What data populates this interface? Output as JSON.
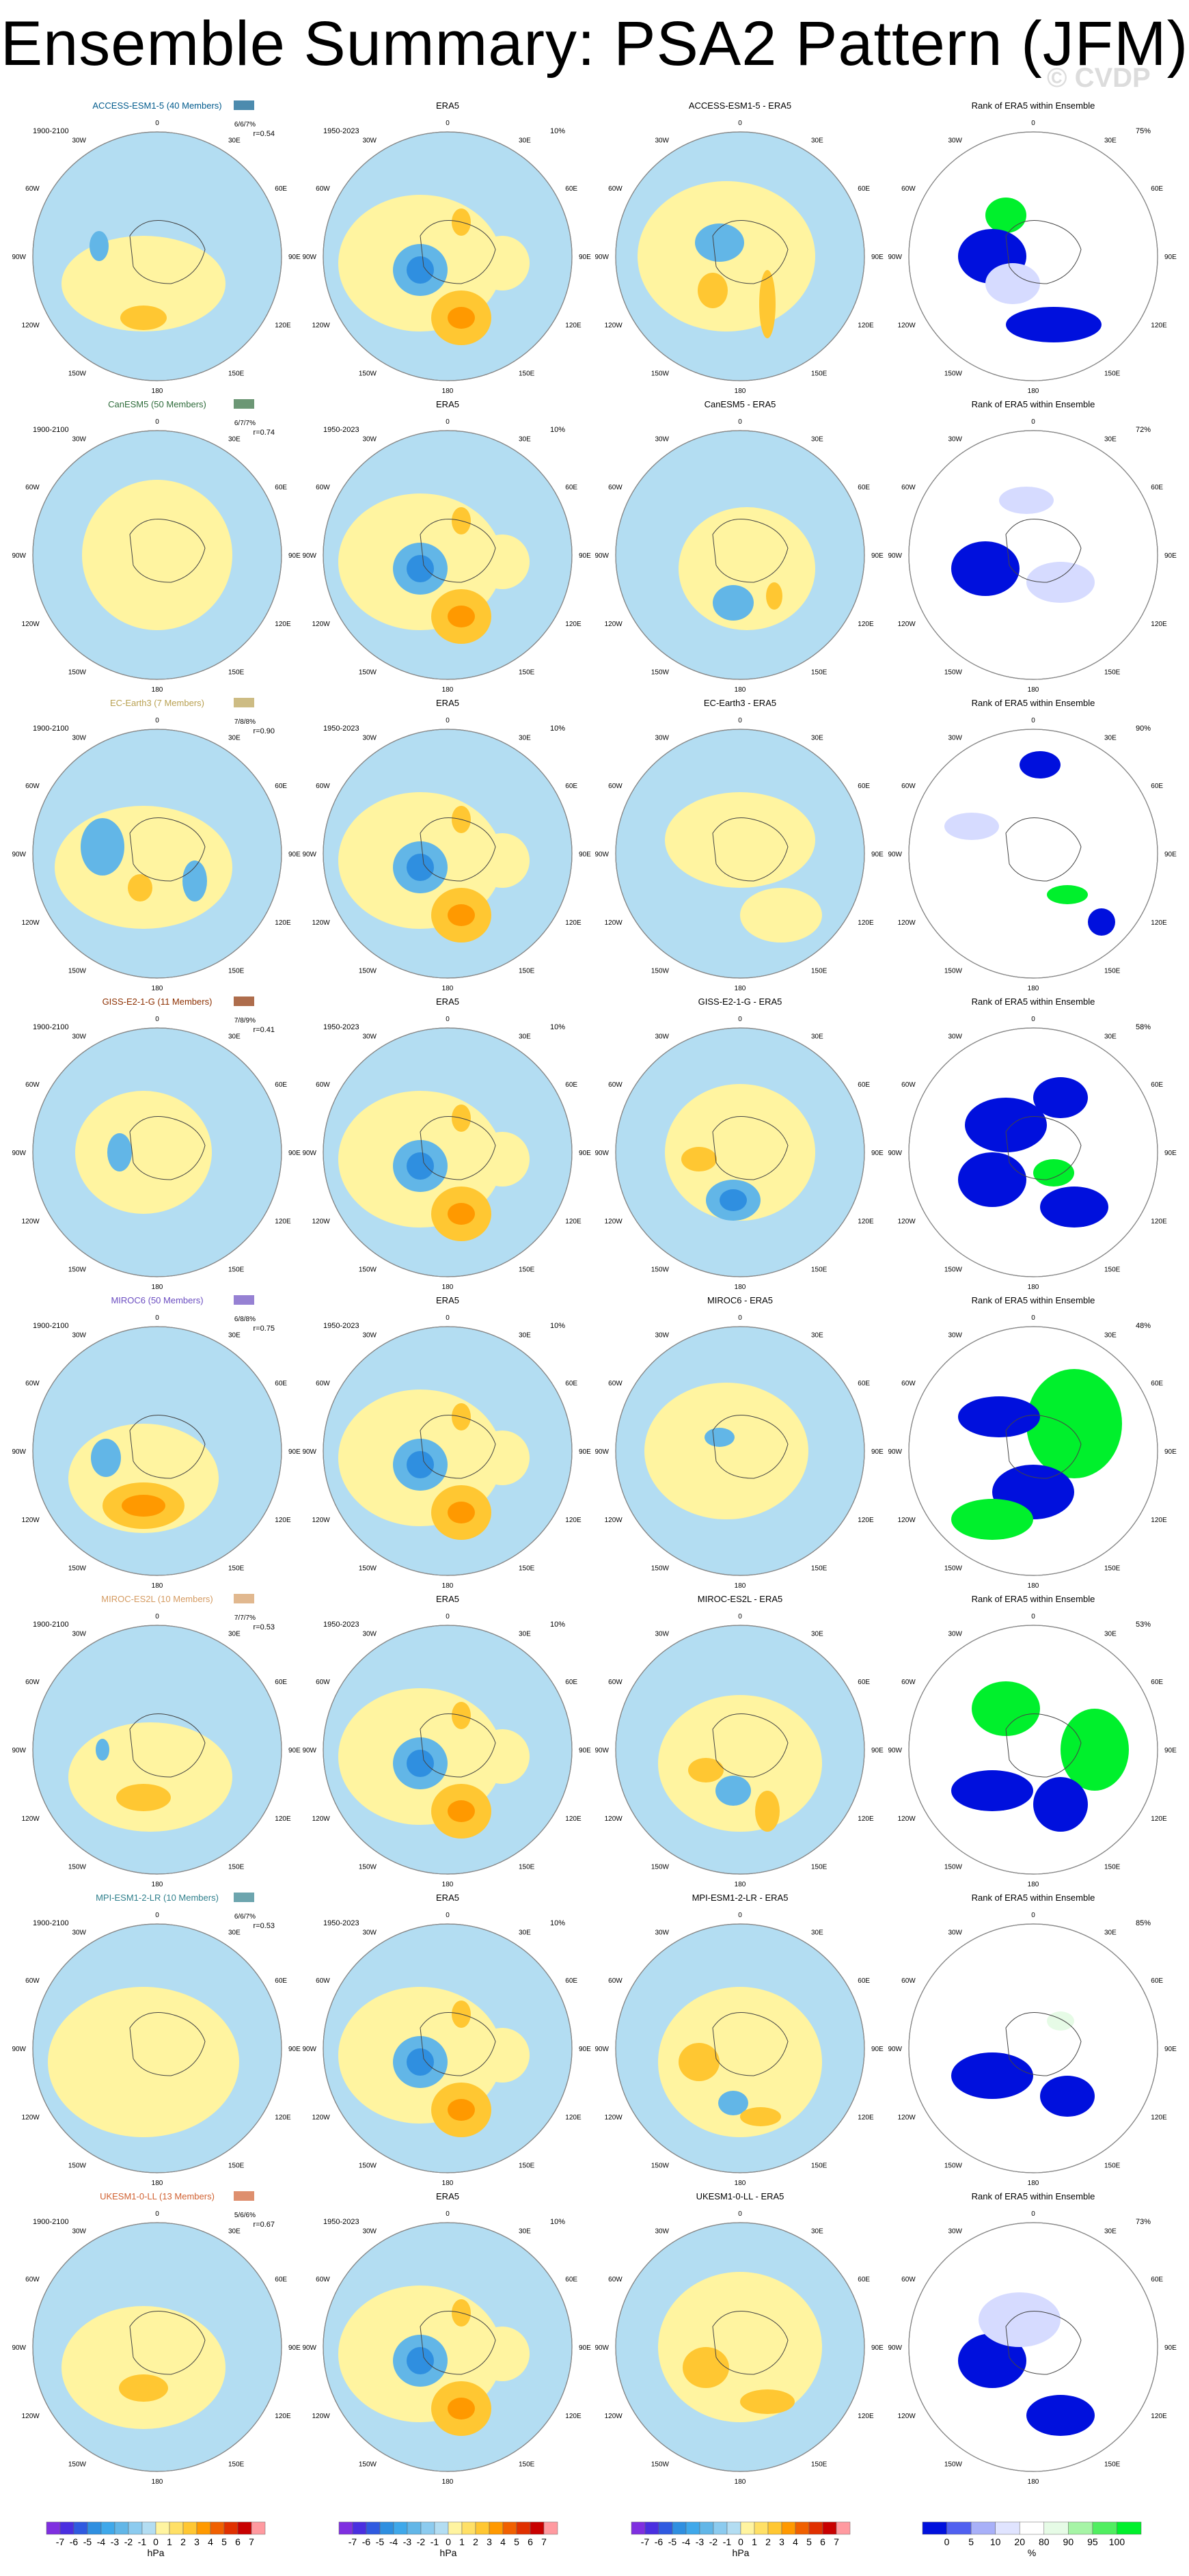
{
  "title": "Ensemble Summary: PSA2 Pattern (JFM)",
  "watermark": "© CVDP",
  "era5_label": "ERA5",
  "rank_title": "Rank of ERA5 within Ensemble",
  "model_period": "1900-2100",
  "era5_period": "1950-2023",
  "era5_pct": "10%",
  "lon_labels": {
    "top": "0",
    "bottom": "180",
    "left": "90W",
    "right": "90E",
    "ul": "30W",
    "ur": "30E",
    "ul2": "60W",
    "ur2": "60E",
    "ll": "120W",
    "lr": "120E",
    "ll2": "150W",
    "lr2": "150E"
  },
  "colors": {
    "neg1": "#b3ddf2",
    "neg2": "#62b6e7",
    "neg3": "#2f8fe0",
    "neg4": "#1f4fe0",
    "pos1": "#fff4a0",
    "pos2": "#ffc732",
    "pos3": "#ff9900",
    "pos4": "#f06000",
    "rank_blue": "#0010dd",
    "rank_lightblue": "#d6dbff",
    "rank_green": "#00f02c",
    "rank_lightgreen": "#e6fbe6",
    "model_colors": [
      "#005a8c",
      "#2e6b3a",
      "#b8a050",
      "#8c2f00",
      "#6a4cc0",
      "#d49a60",
      "#2f7f8c",
      "#d06030"
    ]
  },
  "rows": [
    {
      "model": "ACCESS-ESM1-5 (40 Members)",
      "diff_title": "ACCESS-ESM1-5 - ERA5",
      "pct_rank": "75%",
      "stats1": "6/6/7%",
      "stats2": "r=0.54"
    },
    {
      "model": "CanESM5 (50 Members)",
      "diff_title": "CanESM5 - ERA5",
      "pct_rank": "72%",
      "stats1": "6/7/7%",
      "stats2": "r=0.74"
    },
    {
      "model": "EC-Earth3 (7 Members)",
      "diff_title": "EC-Earth3 - ERA5",
      "pct_rank": "90%",
      "stats1": "7/8/8%",
      "stats2": "r=0.90"
    },
    {
      "model": "GISS-E2-1-G (11 Members)",
      "diff_title": "GISS-E2-1-G - ERA5",
      "pct_rank": "58%",
      "stats1": "7/8/9%",
      "stats2": "r=0.41"
    },
    {
      "model": "MIROC6 (50 Members)",
      "diff_title": "MIROC6 - ERA5",
      "pct_rank": "48%",
      "stats1": "6/8/8%",
      "stats2": "r=0.75"
    },
    {
      "model": "MIROC-ES2L (10 Members)",
      "diff_title": "MIROC-ES2L - ERA5",
      "pct_rank": "53%",
      "stats1": "7/7/7%",
      "stats2": "r=0.53"
    },
    {
      "model": "MPI-ESM1-2-LR (10 Members)",
      "diff_title": "MPI-ESM1-2-LR - ERA5",
      "pct_rank": "85%",
      "stats1": "6/6/7%",
      "stats2": "r=0.53"
    },
    {
      "model": "UKESM1-0-LL (13 Members)",
      "diff_title": "UKESM1-0-LL - ERA5",
      "pct_rank": "73%",
      "stats1": "5/6/6%",
      "stats2": "r=0.67"
    }
  ],
  "colorbar_hpa": {
    "ticks": [
      "-7",
      "-6",
      "-5",
      "-4",
      "-3",
      "-2",
      "-1",
      "0",
      "1",
      "2",
      "3",
      "4",
      "5",
      "6",
      "7"
    ],
    "unit": "hPa",
    "colors": [
      "#7f2fe0",
      "#4a2fe0",
      "#2f5ae0",
      "#2f8fe0",
      "#3fa8ea",
      "#62b6e7",
      "#8ccbef",
      "#b3ddf2",
      "#fff4a0",
      "#ffe066",
      "#ffc732",
      "#ff9900",
      "#f06000",
      "#e03000",
      "#c80000",
      "#ff9aa0"
    ]
  },
  "colorbar_pct": {
    "ticks": [
      "0",
      "5",
      "10",
      "20",
      "80",
      "90",
      "95",
      "100"
    ],
    "unit": "%",
    "colors": [
      "#0010dd",
      "#5060f0",
      "#a8b0f8",
      "#e0e4ff",
      "#ffffff",
      "#e6fbe6",
      "#a6f4a6",
      "#50ee60",
      "#00f02c"
    ]
  }
}
